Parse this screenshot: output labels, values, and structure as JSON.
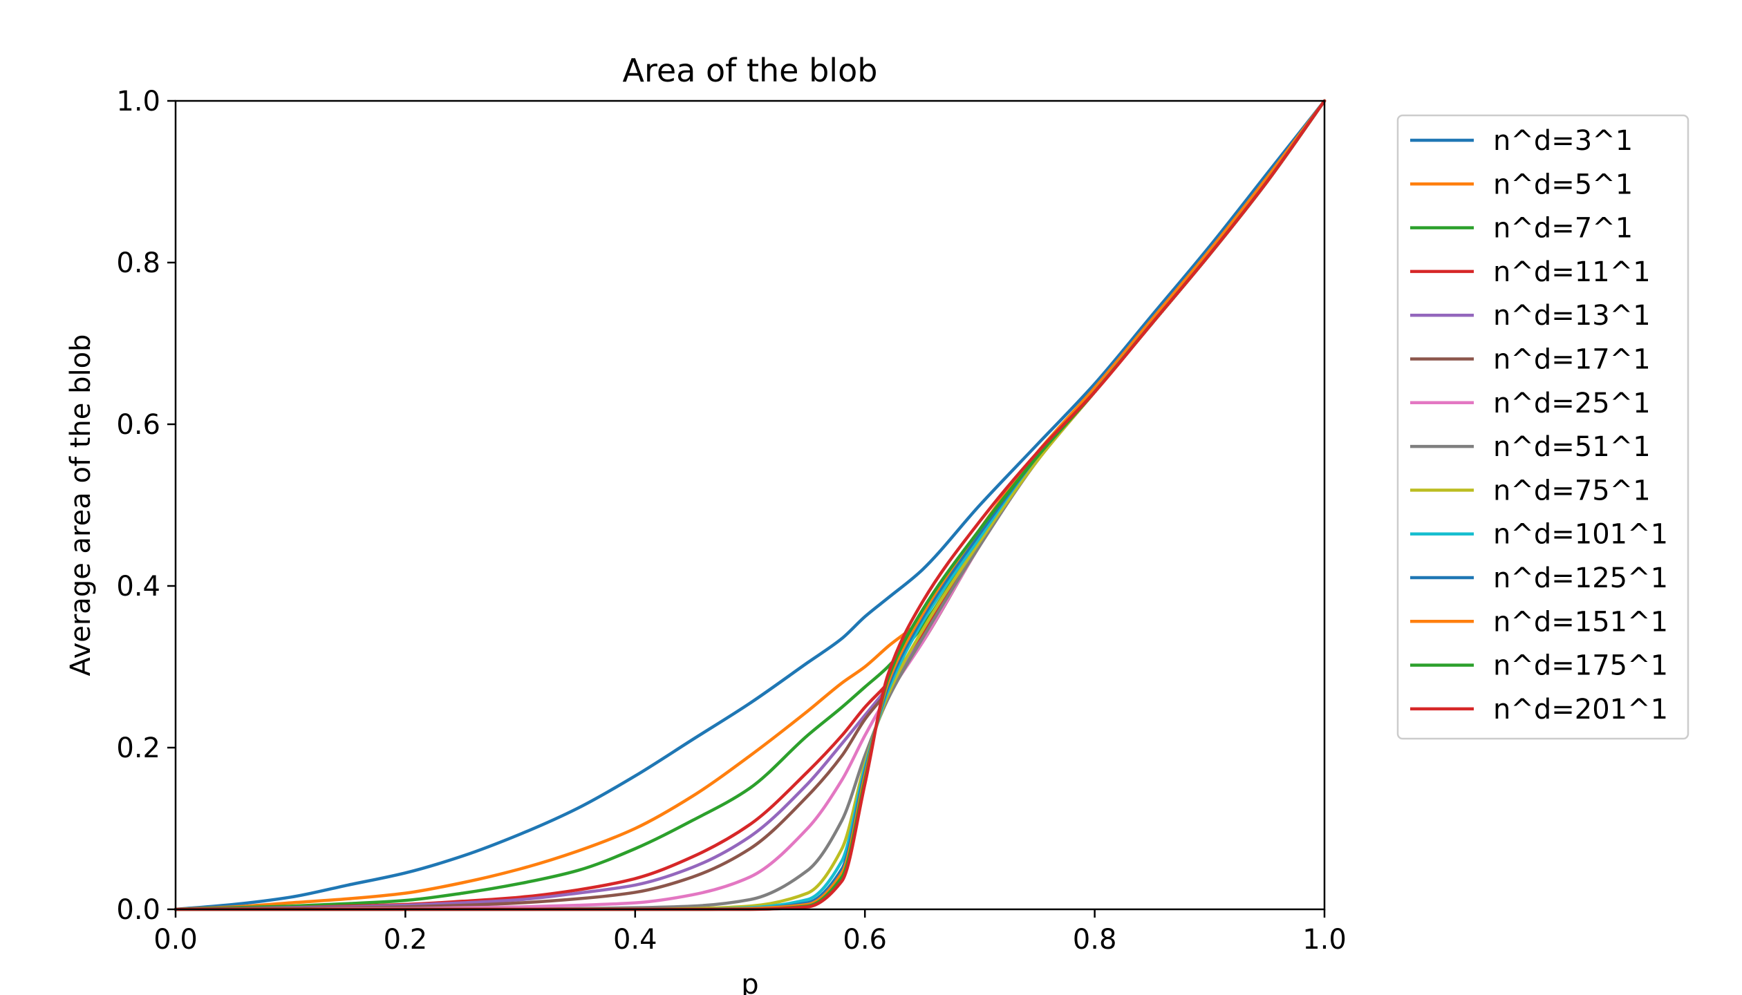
{
  "chart_data": {
    "type": "line",
    "title": "Area of the blob",
    "xlabel": "p",
    "ylabel": "Average area of the blob",
    "xlim": [
      0,
      1
    ],
    "ylim": [
      0,
      1
    ],
    "xticks": [
      "0.0",
      "0.2",
      "0.4",
      "0.6",
      "0.8",
      "1.0"
    ],
    "yticks": [
      "0.0",
      "0.2",
      "0.4",
      "0.6",
      "0.8",
      "1.0"
    ],
    "grid": false,
    "legend_position": "outside-right-top",
    "x": [
      0,
      0.05,
      0.1,
      0.15,
      0.2,
      0.25,
      0.3,
      0.35,
      0.4,
      0.45,
      0.5,
      0.55,
      0.58,
      0.6,
      0.62,
      0.65,
      0.7,
      0.75,
      0.8,
      0.85,
      0.9,
      0.95,
      1.0
    ],
    "series": [
      {
        "name": "n^d=3^1",
        "color": "#1f77b4",
        "values": [
          0,
          0.006,
          0.015,
          0.03,
          0.045,
          0.066,
          0.093,
          0.125,
          0.165,
          0.21,
          0.255,
          0.305,
          0.335,
          0.362,
          0.385,
          0.42,
          0.5,
          0.575,
          0.65,
          0.735,
          0.82,
          0.91,
          1.0
        ]
      },
      {
        "name": "n^d=5^1",
        "color": "#ff7f0e",
        "values": [
          0,
          0.003,
          0.008,
          0.013,
          0.02,
          0.033,
          0.05,
          0.072,
          0.1,
          0.14,
          0.19,
          0.245,
          0.28,
          0.3,
          0.325,
          0.36,
          0.47,
          0.565,
          0.645,
          0.73,
          0.815,
          0.905,
          1.0
        ]
      },
      {
        "name": "n^d=7^1",
        "color": "#2ca02c",
        "values": [
          0,
          0.002,
          0.004,
          0.007,
          0.011,
          0.02,
          0.032,
          0.048,
          0.075,
          0.11,
          0.15,
          0.215,
          0.25,
          0.275,
          0.3,
          0.35,
          0.46,
          0.56,
          0.64,
          0.725,
          0.81,
          0.9,
          1.0
        ]
      },
      {
        "name": "n^d=11^1",
        "color": "#d62728",
        "values": [
          0,
          0.001,
          0.002,
          0.004,
          0.006,
          0.01,
          0.015,
          0.024,
          0.038,
          0.065,
          0.105,
          0.17,
          0.215,
          0.25,
          0.28,
          0.34,
          0.455,
          0.555,
          0.64,
          0.725,
          0.81,
          0.9,
          1.0
        ]
      },
      {
        "name": "n^d=13^1",
        "color": "#9467bd",
        "values": [
          0,
          0.001,
          0.002,
          0.003,
          0.005,
          0.008,
          0.012,
          0.02,
          0.03,
          0.052,
          0.09,
          0.155,
          0.205,
          0.24,
          0.275,
          0.335,
          0.45,
          0.555,
          0.64,
          0.725,
          0.81,
          0.9,
          1.0
        ]
      },
      {
        "name": "n^d=17^1",
        "color": "#8c564b",
        "values": [
          0,
          0.001,
          0.001,
          0.002,
          0.003,
          0.005,
          0.008,
          0.013,
          0.021,
          0.04,
          0.075,
          0.14,
          0.19,
          0.235,
          0.27,
          0.33,
          0.45,
          0.555,
          0.64,
          0.725,
          0.81,
          0.9,
          1.0
        ]
      },
      {
        "name": "n^d=25^1",
        "color": "#e377c2",
        "values": [
          0,
          0,
          0,
          0.001,
          0.001,
          0.002,
          0.003,
          0.005,
          0.008,
          0.018,
          0.04,
          0.1,
          0.16,
          0.215,
          0.265,
          0.33,
          0.45,
          0.555,
          0.64,
          0.725,
          0.81,
          0.9,
          1.0
        ]
      },
      {
        "name": "n^d=51^1",
        "color": "#7f7f7f",
        "values": [
          0,
          0,
          0,
          0,
          0,
          0,
          0,
          0.001,
          0.002,
          0.004,
          0.012,
          0.048,
          0.11,
          0.19,
          0.26,
          0.335,
          0.45,
          0.555,
          0.64,
          0.725,
          0.81,
          0.9,
          1.0
        ]
      },
      {
        "name": "n^d=75^1",
        "color": "#bcbd22",
        "values": [
          0,
          0,
          0,
          0,
          0,
          0,
          0,
          0,
          0,
          0.001,
          0.004,
          0.02,
          0.075,
          0.18,
          0.265,
          0.345,
          0.455,
          0.555,
          0.64,
          0.725,
          0.81,
          0.9,
          1.0
        ]
      },
      {
        "name": "n^d=101^1",
        "color": "#17becf",
        "values": [
          0,
          0,
          0,
          0,
          0,
          0,
          0,
          0,
          0,
          0,
          0.002,
          0.012,
          0.06,
          0.175,
          0.27,
          0.355,
          0.46,
          0.56,
          0.64,
          0.725,
          0.81,
          0.9,
          1.0
        ]
      },
      {
        "name": "n^d=125^1",
        "color": "#1f77b4",
        "values": [
          0,
          0,
          0,
          0,
          0,
          0,
          0,
          0,
          0,
          0,
          0.001,
          0.008,
          0.05,
          0.17,
          0.275,
          0.36,
          0.465,
          0.56,
          0.64,
          0.725,
          0.81,
          0.9,
          1.0
        ]
      },
      {
        "name": "n^d=151^1",
        "color": "#ff7f0e",
        "values": [
          0,
          0,
          0,
          0,
          0,
          0,
          0,
          0,
          0,
          0,
          0.001,
          0.006,
          0.045,
          0.165,
          0.28,
          0.365,
          0.47,
          0.56,
          0.64,
          0.725,
          0.81,
          0.9,
          1.0
        ]
      },
      {
        "name": "n^d=175^1",
        "color": "#2ca02c",
        "values": [
          0,
          0,
          0,
          0,
          0,
          0,
          0,
          0,
          0,
          0,
          0,
          0.004,
          0.04,
          0.16,
          0.285,
          0.37,
          0.47,
          0.56,
          0.64,
          0.725,
          0.81,
          0.9,
          1.0
        ]
      },
      {
        "name": "n^d=201^1",
        "color": "#d62728",
        "values": [
          0,
          0,
          0,
          0,
          0,
          0,
          0,
          0,
          0,
          0,
          0,
          0.003,
          0.035,
          0.155,
          0.29,
          0.38,
          0.48,
          0.565,
          0.64,
          0.725,
          0.81,
          0.9,
          1.0
        ]
      }
    ]
  }
}
